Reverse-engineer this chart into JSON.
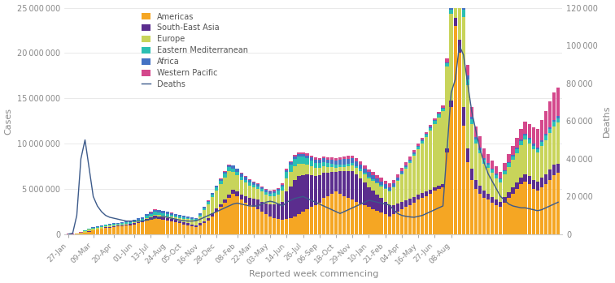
{
  "x_labels": [
    "27-Jan",
    "09-Mar",
    "20-Apr",
    "01-Jun",
    "13-Jul",
    "24-Aug",
    "05-Oct",
    "16-Nov",
    "28-Dec",
    "08-Feb",
    "22-Mar",
    "03-May",
    "14-Jun",
    "26-Jul",
    "06-Sep",
    "18-Oct",
    "29-Nov",
    "10-Jan",
    "21-Feb",
    "04-Apr",
    "16-May",
    "27-Jun",
    "08-Aug"
  ],
  "x_tick_positions": [
    0,
    6,
    11,
    16,
    20,
    24,
    28,
    32,
    36,
    41,
    45,
    49,
    53,
    57,
    61,
    65,
    69,
    73,
    77,
    81,
    85,
    89,
    93
  ],
  "colors": {
    "americas": "#F5A623",
    "south_east_asia": "#5B2D8E",
    "europe": "#C8D45A",
    "eastern_mediterranean": "#2BBFB3",
    "africa": "#4472C4",
    "western_pacific": "#D4488C",
    "deaths": "#3C5A8A"
  },
  "xlabel": "Reported week commencing",
  "ylabel_left": "Cases",
  "ylabel_right": "Deaths",
  "ylim_left": [
    0,
    25000000
  ],
  "ylim_right": [
    0,
    120000
  ],
  "background_color": "#ffffff"
}
